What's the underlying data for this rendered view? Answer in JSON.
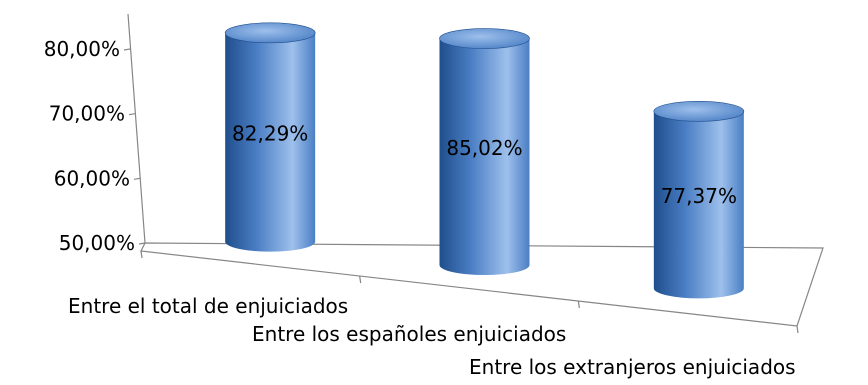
{
  "chart_data": {
    "type": "bar",
    "subtype": "3d-cylinder",
    "categories": [
      "Entre el total de enjuiciados",
      "Entre los españoles enjuiciados",
      "Entre los extranjeros enjuiciados"
    ],
    "values": [
      82.29,
      85.02,
      77.37
    ],
    "data_labels": [
      "82,29%",
      "85,02%",
      "77,37%"
    ],
    "y_ticks": [
      "50,00%",
      "60,00%",
      "70,00%",
      "80,00%"
    ],
    "ylim": [
      50,
      80
    ],
    "grid": false,
    "legend": "none",
    "bar_color": "#4a7ec4",
    "bar_color_dark": "#1f4e8c",
    "bar_color_light": "#9ec0ec"
  }
}
